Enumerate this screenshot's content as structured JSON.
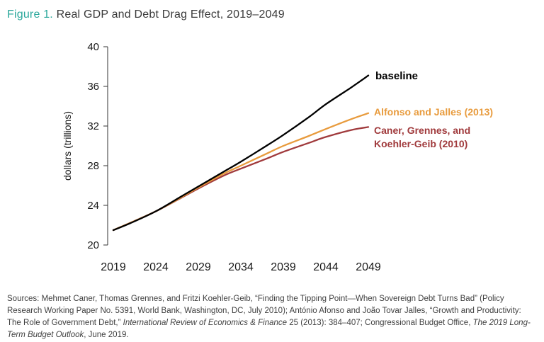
{
  "title": {
    "prefix": "Figure 1.",
    "rest": " Real GDP and Debt Drag Effect, 2019–2049"
  },
  "colors": {
    "accent_teal": "#2AA79B",
    "baseline_line": "#000000",
    "afonso_line": "#E89B3D",
    "caner_line": "#A03A3C",
    "axis": "#333333",
    "tick_text": "#1a1a1a"
  },
  "chart_data": {
    "type": "line",
    "title": "Real GDP and Debt Drag Effect, 2019–2049",
    "xlabel": "",
    "ylabel": "dollars (trillions)",
    "xlim": [
      2019,
      2049
    ],
    "ylim": [
      20,
      40
    ],
    "xticks": [
      2019,
      2024,
      2029,
      2034,
      2039,
      2044,
      2049
    ],
    "yticks": [
      20,
      24,
      28,
      32,
      36,
      40
    ],
    "grid": false,
    "legend_position": "end-of-line labels (right)",
    "series": [
      {
        "name": "Caner, Grennes, and Koehler-Geib (2010)",
        "color": "#A03A3C",
        "x": [
          2019,
          2024,
          2029,
          2032,
          2034,
          2037,
          2039,
          2042,
          2044,
          2047,
          2049
        ],
        "y": [
          21.5,
          23.4,
          25.7,
          27.0,
          27.7,
          28.7,
          29.4,
          30.3,
          30.9,
          31.6,
          31.9
        ]
      },
      {
        "name": "Alfonso and Jalles (2013)",
        "color": "#E89B3D",
        "x": [
          2019,
          2024,
          2029,
          2032,
          2034,
          2037,
          2039,
          2042,
          2044,
          2047,
          2049
        ],
        "y": [
          21.5,
          23.4,
          25.8,
          27.2,
          28.0,
          29.2,
          30.0,
          31.0,
          31.7,
          32.7,
          33.3
        ]
      },
      {
        "name": "baseline",
        "color": "#000000",
        "x": [
          2019,
          2021,
          2024,
          2027,
          2029,
          2032,
          2034,
          2037,
          2039,
          2042,
          2044,
          2047,
          2049
        ],
        "y": [
          21.5,
          22.2,
          23.4,
          24.9,
          25.9,
          27.4,
          28.4,
          30.0,
          31.1,
          32.9,
          34.2,
          35.9,
          37.1
        ]
      }
    ]
  },
  "labels": {
    "baseline": "baseline",
    "afonso": "Alfonso and Jalles (2013)",
    "caner_line1": "Caner, Grennes, and",
    "caner_line2": "Koehler-Geib (2010)"
  },
  "sources": {
    "segments": [
      {
        "text": "Sources: Mehmet Caner, Thomas Grennes, and Fritzi Koehler-Geib, “Finding the Tipping Point—When Sovereign Debt Turns Bad” (Policy Research Working Paper No. 5391, World Bank, Washington, DC, July 2010); António Afonso and João Tovar Jalles, “Growth and Productivity: The Role of Government Debt,” ",
        "italic": false
      },
      {
        "text": "International Review of Economics & Finance",
        "italic": true
      },
      {
        "text": " 25 (2013): 384–407; Congressional Budget Office, ",
        "italic": false
      },
      {
        "text": "The 2019 Long-Term Budget Outlook",
        "italic": true
      },
      {
        "text": ", June 2019.",
        "italic": false
      }
    ]
  }
}
